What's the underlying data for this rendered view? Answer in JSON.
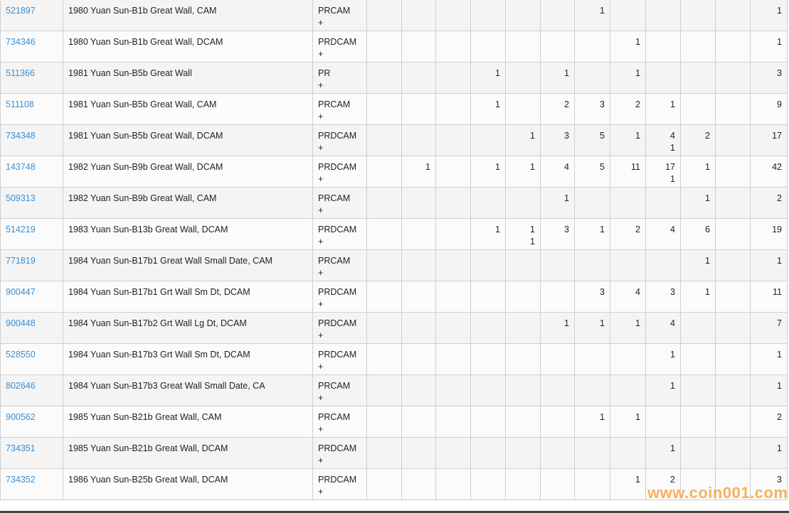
{
  "rows": [
    {
      "id": "521897",
      "desc": "1980 Yuan Sun-B1b Great Wall, CAM",
      "designation": "PRCAM\n+",
      "counts": [
        "",
        "",
        "",
        "",
        "",
        "",
        "1",
        "",
        "",
        "",
        "",
        ""
      ],
      "total": "1"
    },
    {
      "id": "734346",
      "desc": "1980 Yuan Sun-B1b Great Wall, DCAM",
      "designation": "PRDCAM\n+",
      "counts": [
        "",
        "",
        "",
        "",
        "",
        "",
        "",
        "1",
        "",
        "",
        "",
        ""
      ],
      "total": "1"
    },
    {
      "id": "511366",
      "desc": "1981 Yuan Sun-B5b Great Wall",
      "designation": "PR\n+",
      "counts": [
        "",
        "",
        "",
        "1",
        "",
        "1",
        "",
        "1",
        "",
        "",
        ""
      ],
      "total": "3"
    },
    {
      "id": "511108",
      "desc": "1981 Yuan Sun-B5b Great Wall, CAM",
      "designation": "PRCAM\n+",
      "counts": [
        "",
        "",
        "",
        "1",
        "",
        "2",
        "3",
        "2",
        "1",
        "",
        ""
      ],
      "total": "9"
    },
    {
      "id": "734348",
      "desc": "1981 Yuan Sun-B5b Great Wall, DCAM",
      "designation": "PRDCAM\n+",
      "counts": [
        "",
        "",
        "",
        "",
        "1",
        "3",
        "5",
        "1",
        "4\n1",
        "2",
        ""
      ],
      "total": "17"
    },
    {
      "id": "143748",
      "desc": "1982 Yuan Sun-B9b Great Wall, DCAM",
      "designation": "PRDCAM\n+",
      "counts": [
        "",
        "1",
        "",
        "1",
        "1",
        "4",
        "5",
        "11",
        "17\n1",
        "1",
        ""
      ],
      "total": "42"
    },
    {
      "id": "509313",
      "desc": "1982 Yuan Sun-B9b Great Wall, CAM",
      "designation": "PRCAM\n+",
      "counts": [
        "",
        "",
        "",
        "",
        "",
        "1",
        "",
        "",
        "",
        "1",
        ""
      ],
      "total": "2"
    },
    {
      "id": "514219",
      "desc": "1983 Yuan Sun-B13b Great Wall, DCAM",
      "designation": "PRDCAM\n+",
      "counts": [
        "",
        "",
        "",
        "1",
        "1\n1",
        "3",
        "1",
        "2",
        "4",
        "6",
        ""
      ],
      "total": "19"
    },
    {
      "id": "771819",
      "desc": "1984 Yuan Sun-B17b1 Great Wall Small Date, CAM",
      "designation": "PRCAM\n+",
      "counts": [
        "",
        "",
        "",
        "",
        "",
        "",
        "",
        "",
        "",
        "1",
        ""
      ],
      "total": "1"
    },
    {
      "id": "900447",
      "desc": "1984 Yuan Sun-B17b1 Grt Wall Sm Dt, DCAM",
      "designation": "PRDCAM\n+",
      "counts": [
        "",
        "",
        "",
        "",
        "",
        "",
        "3",
        "4",
        "3",
        "1",
        ""
      ],
      "total": "11"
    },
    {
      "id": "900448",
      "desc": "1984 Yuan Sun-B17b2 Grt Wall Lg Dt, DCAM",
      "designation": "PRDCAM\n+",
      "counts": [
        "",
        "",
        "",
        "",
        "",
        "1",
        "1",
        "1",
        "4",
        "",
        ""
      ],
      "total": "7"
    },
    {
      "id": "528550",
      "desc": "1984 Yuan Sun-B17b3 Grt Wall Sm Dt, DCAM",
      "designation": "PRDCAM\n+",
      "counts": [
        "",
        "",
        "",
        "",
        "",
        "",
        "",
        "",
        "1",
        "",
        ""
      ],
      "total": "1"
    },
    {
      "id": "802646",
      "desc": "1984 Yuan Sun-B17b3 Great Wall Small Date, CA",
      "designation": "PRCAM\n+",
      "counts": [
        "",
        "",
        "",
        "",
        "",
        "",
        "",
        "",
        "1",
        "",
        ""
      ],
      "total": "1"
    },
    {
      "id": "900562",
      "desc": "1985 Yuan Sun-B21b Great Wall, CAM",
      "designation": "PRCAM\n+",
      "counts": [
        "",
        "",
        "",
        "",
        "",
        "",
        "1",
        "1",
        "",
        "",
        ""
      ],
      "total": "2"
    },
    {
      "id": "734351",
      "desc": "1985 Yuan Sun-B21b Great Wall, DCAM",
      "designation": "PRDCAM\n+",
      "counts": [
        "",
        "",
        "",
        "",
        "",
        "",
        "",
        "",
        "1",
        "",
        ""
      ],
      "total": "1"
    },
    {
      "id": "734352",
      "desc": "1986 Yuan Sun-B25b Great Wall, DCAM",
      "designation": "PRDCAM\n+",
      "counts": [
        "",
        "",
        "",
        "",
        "",
        "",
        "",
        "1",
        "2",
        "",
        ""
      ],
      "total": "3"
    }
  ],
  "watermark": "www.coin001.com",
  "colors": {
    "link": "#3d8fd0",
    "watermark": "#f89628"
  }
}
